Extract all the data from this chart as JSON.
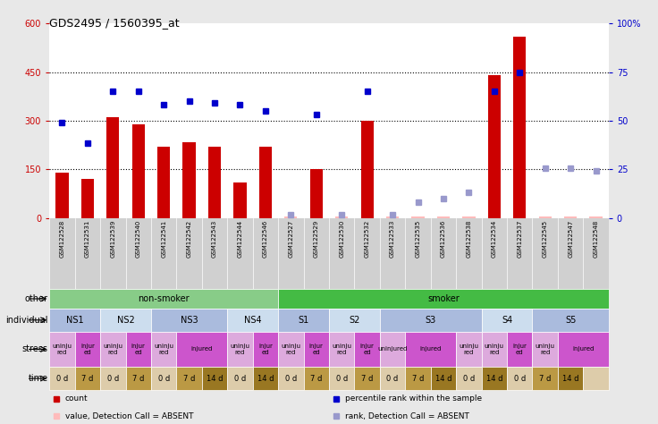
{
  "title": "GDS2495 / 1560395_at",
  "samples": [
    "GSM122528",
    "GSM122531",
    "GSM122539",
    "GSM122540",
    "GSM122541",
    "GSM122542",
    "GSM122543",
    "GSM122544",
    "GSM122546",
    "GSM122527",
    "GSM122529",
    "GSM122530",
    "GSM122532",
    "GSM122533",
    "GSM122535",
    "GSM122536",
    "GSM122538",
    "GSM122534",
    "GSM122537",
    "GSM122545",
    "GSM122547",
    "GSM122548"
  ],
  "count_values": [
    140,
    120,
    310,
    290,
    220,
    235,
    220,
    110,
    220,
    5,
    150,
    5,
    300,
    5,
    5,
    5,
    5,
    440,
    560,
    5,
    5,
    5
  ],
  "rank_values": [
    295,
    230,
    390,
    390,
    350,
    360,
    355,
    350,
    330,
    10,
    320,
    10,
    390,
    10,
    50,
    60,
    80,
    390,
    450,
    155,
    155,
    145
  ],
  "count_absent": [
    false,
    false,
    false,
    false,
    false,
    false,
    false,
    false,
    false,
    true,
    false,
    true,
    false,
    true,
    true,
    true,
    true,
    false,
    false,
    true,
    true,
    true
  ],
  "rank_absent": [
    false,
    false,
    false,
    false,
    false,
    false,
    false,
    false,
    false,
    true,
    false,
    true,
    false,
    true,
    true,
    true,
    true,
    false,
    false,
    true,
    true,
    true
  ],
  "count_color": "#cc0000",
  "count_absent_color": "#ffbbbb",
  "rank_color": "#0000cc",
  "rank_absent_color": "#9999cc",
  "bar_width": 0.5,
  "ylim_left": [
    0,
    600
  ],
  "ylim_right": [
    0,
    100
  ],
  "yticks_left": [
    0,
    150,
    300,
    450,
    600
  ],
  "yticks_right": [
    0,
    25,
    50,
    75,
    100
  ],
  "ytick_labels_left": [
    "0",
    "150",
    "300",
    "450",
    "600"
  ],
  "ytick_labels_right": [
    "0",
    "25",
    "50",
    "75",
    "100%"
  ],
  "hlines": [
    150,
    300,
    450
  ],
  "bg_color": "#e8e8e8",
  "plot_bg_color": "#ffffff",
  "xtick_bg_color": "#d0d0d0",
  "other_groups": [
    {
      "label": "non-smoker",
      "start": 0,
      "end": 9,
      "color": "#88cc88"
    },
    {
      "label": "smoker",
      "start": 9,
      "end": 22,
      "color": "#44bb44"
    }
  ],
  "individual_groups": [
    {
      "label": "NS1",
      "start": 0,
      "end": 2,
      "color": "#aabbdd"
    },
    {
      "label": "NS2",
      "start": 2,
      "end": 4,
      "color": "#ccddee"
    },
    {
      "label": "NS3",
      "start": 4,
      "end": 7,
      "color": "#aabbdd"
    },
    {
      "label": "NS4",
      "start": 7,
      "end": 9,
      "color": "#ccddee"
    },
    {
      "label": "S1",
      "start": 9,
      "end": 11,
      "color": "#aabbdd"
    },
    {
      "label": "S2",
      "start": 11,
      "end": 13,
      "color": "#ccddee"
    },
    {
      "label": "S3",
      "start": 13,
      "end": 17,
      "color": "#aabbdd"
    },
    {
      "label": "S4",
      "start": 17,
      "end": 19,
      "color": "#ccddee"
    },
    {
      "label": "S5",
      "start": 19,
      "end": 22,
      "color": "#aabbdd"
    }
  ],
  "stress_groups": [
    {
      "label": "uninju\nred",
      "start": 0,
      "end": 1,
      "color": "#ddaadd"
    },
    {
      "label": "injur\ned",
      "start": 1,
      "end": 2,
      "color": "#cc55cc"
    },
    {
      "label": "uninju\nred",
      "start": 2,
      "end": 3,
      "color": "#ddaadd"
    },
    {
      "label": "injur\ned",
      "start": 3,
      "end": 4,
      "color": "#cc55cc"
    },
    {
      "label": "uninju\nred",
      "start": 4,
      "end": 5,
      "color": "#ddaadd"
    },
    {
      "label": "injured",
      "start": 5,
      "end": 7,
      "color": "#cc55cc"
    },
    {
      "label": "uninju\nred",
      "start": 7,
      "end": 8,
      "color": "#ddaadd"
    },
    {
      "label": "injur\ned",
      "start": 8,
      "end": 9,
      "color": "#cc55cc"
    },
    {
      "label": "uninju\nred",
      "start": 9,
      "end": 10,
      "color": "#ddaadd"
    },
    {
      "label": "injur\ned",
      "start": 10,
      "end": 11,
      "color": "#cc55cc"
    },
    {
      "label": "uninju\nred",
      "start": 11,
      "end": 12,
      "color": "#ddaadd"
    },
    {
      "label": "injur\ned",
      "start": 12,
      "end": 13,
      "color": "#cc55cc"
    },
    {
      "label": "uninjured",
      "start": 13,
      "end": 14,
      "color": "#ddaadd"
    },
    {
      "label": "injured",
      "start": 14,
      "end": 16,
      "color": "#cc55cc"
    },
    {
      "label": "uninju\nred",
      "start": 16,
      "end": 17,
      "color": "#ddaadd"
    },
    {
      "label": "uninju\nred",
      "start": 17,
      "end": 18,
      "color": "#ddaadd"
    },
    {
      "label": "injur\ned",
      "start": 18,
      "end": 19,
      "color": "#cc55cc"
    },
    {
      "label": "uninju\nred",
      "start": 19,
      "end": 20,
      "color": "#ddaadd"
    },
    {
      "label": "injured",
      "start": 20,
      "end": 22,
      "color": "#cc55cc"
    }
  ],
  "time_groups": [
    {
      "label": "0 d",
      "start": 0,
      "end": 1,
      "color": "#ddccaa"
    },
    {
      "label": "7 d",
      "start": 1,
      "end": 2,
      "color": "#bb9944"
    },
    {
      "label": "0 d",
      "start": 2,
      "end": 3,
      "color": "#ddccaa"
    },
    {
      "label": "7 d",
      "start": 3,
      "end": 4,
      "color": "#bb9944"
    },
    {
      "label": "0 d",
      "start": 4,
      "end": 5,
      "color": "#ddccaa"
    },
    {
      "label": "7 d",
      "start": 5,
      "end": 6,
      "color": "#bb9944"
    },
    {
      "label": "14 d",
      "start": 6,
      "end": 7,
      "color": "#997722"
    },
    {
      "label": "0 d",
      "start": 7,
      "end": 8,
      "color": "#ddccaa"
    },
    {
      "label": "14 d",
      "start": 8,
      "end": 9,
      "color": "#997722"
    },
    {
      "label": "0 d",
      "start": 9,
      "end": 10,
      "color": "#ddccaa"
    },
    {
      "label": "7 d",
      "start": 10,
      "end": 11,
      "color": "#bb9944"
    },
    {
      "label": "0 d",
      "start": 11,
      "end": 12,
      "color": "#ddccaa"
    },
    {
      "label": "7 d",
      "start": 12,
      "end": 13,
      "color": "#bb9944"
    },
    {
      "label": "0 d",
      "start": 13,
      "end": 14,
      "color": "#ddccaa"
    },
    {
      "label": "7 d",
      "start": 14,
      "end": 15,
      "color": "#bb9944"
    },
    {
      "label": "14 d",
      "start": 15,
      "end": 16,
      "color": "#997722"
    },
    {
      "label": "0 d",
      "start": 16,
      "end": 17,
      "color": "#ddccaa"
    },
    {
      "label": "14 d",
      "start": 17,
      "end": 18,
      "color": "#997722"
    },
    {
      "label": "0 d",
      "start": 18,
      "end": 19,
      "color": "#ddccaa"
    },
    {
      "label": "7 d",
      "start": 19,
      "end": 20,
      "color": "#bb9944"
    },
    {
      "label": "14 d",
      "start": 20,
      "end": 21,
      "color": "#997722"
    },
    {
      "label": "",
      "start": 21,
      "end": 22,
      "color": "#ddccaa"
    }
  ],
  "legend_items": [
    {
      "label": "count",
      "color": "#cc0000"
    },
    {
      "label": "percentile rank within the sample",
      "color": "#0000cc"
    },
    {
      "label": "value, Detection Call = ABSENT",
      "color": "#ffbbbb"
    },
    {
      "label": "rank, Detection Call = ABSENT",
      "color": "#9999cc"
    }
  ],
  "row_labels": [
    "other",
    "individual",
    "stress",
    "time"
  ]
}
